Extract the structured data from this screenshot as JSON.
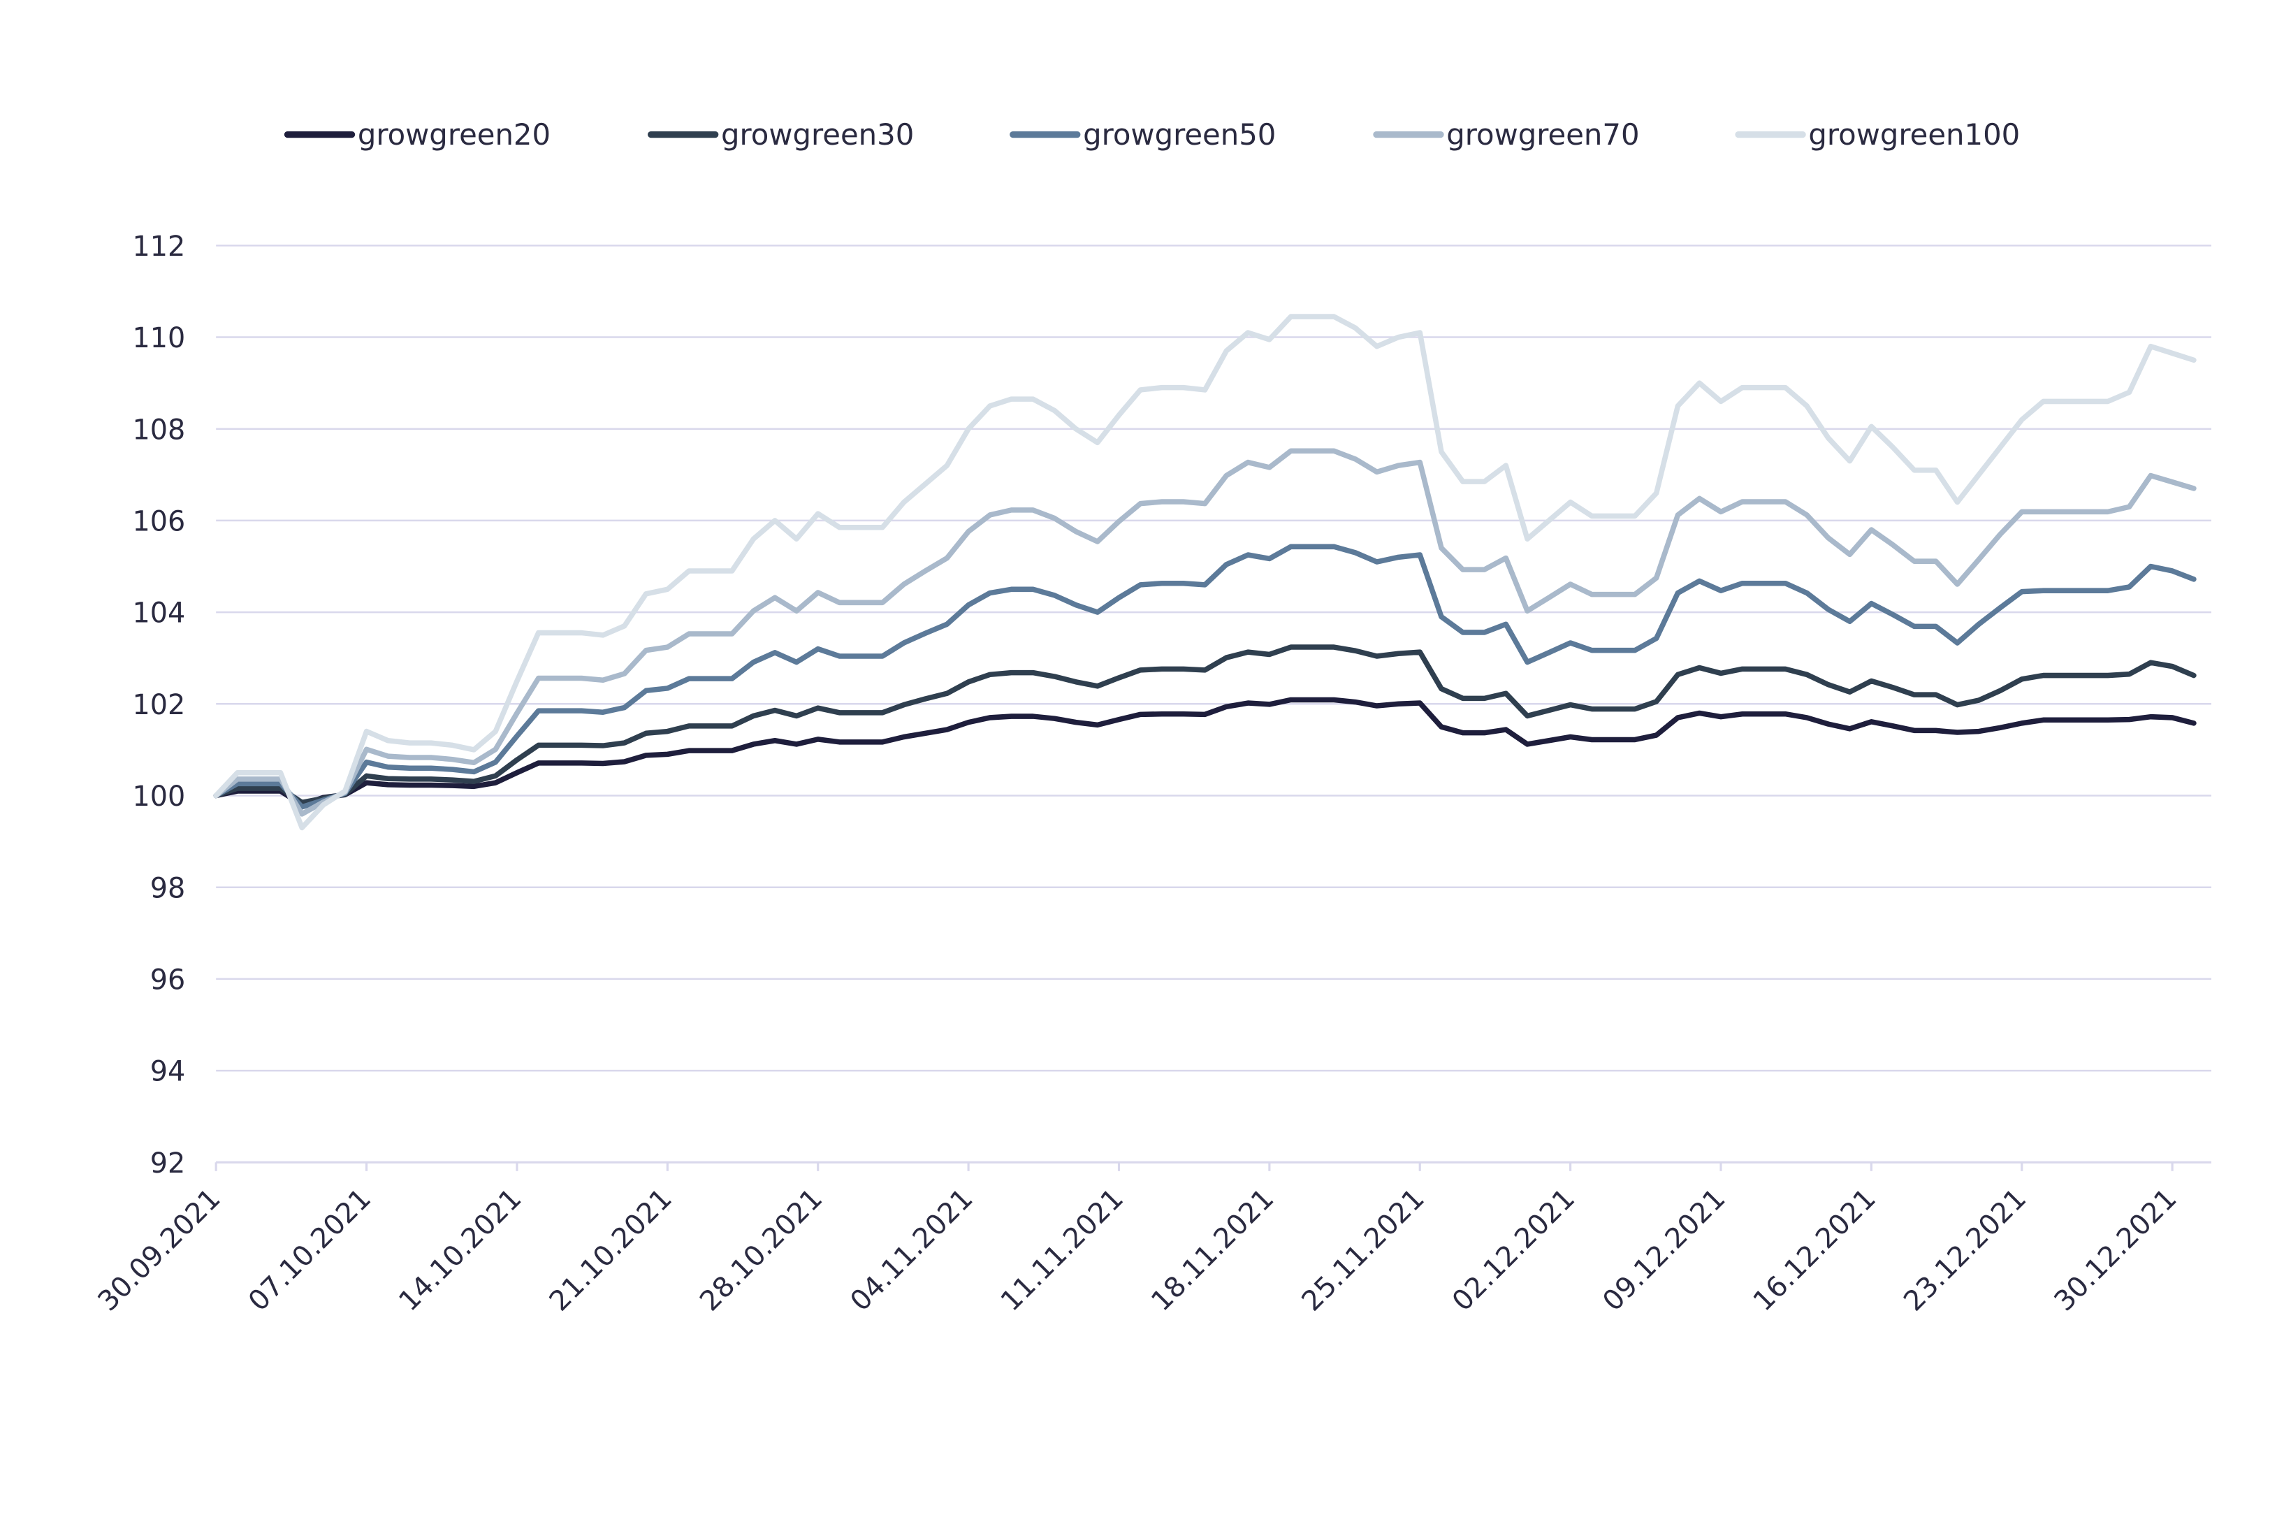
{
  "chart_data": {
    "type": "line",
    "title": "",
    "xlabel": "",
    "ylabel": "",
    "ylim": [
      92,
      112
    ],
    "yticks": [
      "92",
      "94",
      "96",
      "98",
      "100",
      "102",
      "104",
      "106",
      "108",
      "110",
      "112"
    ],
    "xticks": [
      "30.09.2021",
      "07.10.2021",
      "14.10.2021",
      "21.10.2021",
      "28.10.2021",
      "04.11.2021",
      "11.11.2021",
      "18.11.2021",
      "25.11.2021",
      "02.12.2021",
      "09.12.2021",
      "16.12.2021",
      "23.12.2021",
      "30.12.2021"
    ],
    "grid": "horizontal",
    "legend": "top",
    "x": [
      "30.09.2021",
      "01.10.2021",
      "02.10.2021",
      "03.10.2021",
      "04.10.2021",
      "05.10.2021",
      "06.10.2021",
      "07.10.2021",
      "08.10.2021",
      "09.10.2021",
      "10.10.2021",
      "11.10.2021",
      "12.10.2021",
      "13.10.2021",
      "14.10.2021",
      "15.10.2021",
      "16.10.2021",
      "17.10.2021",
      "18.10.2021",
      "19.10.2021",
      "20.10.2021",
      "21.10.2021",
      "22.10.2021",
      "23.10.2021",
      "24.10.2021",
      "25.10.2021",
      "26.10.2021",
      "27.10.2021",
      "28.10.2021",
      "29.10.2021",
      "30.10.2021",
      "31.10.2021",
      "01.11.2021",
      "02.11.2021",
      "03.11.2021",
      "04.11.2021",
      "05.11.2021",
      "06.11.2021",
      "07.11.2021",
      "08.11.2021",
      "09.11.2021",
      "10.11.2021",
      "11.11.2021",
      "12.11.2021",
      "13.11.2021",
      "14.11.2021",
      "15.11.2021",
      "16.11.2021",
      "17.11.2021",
      "18.11.2021",
      "19.11.2021",
      "20.11.2021",
      "21.11.2021",
      "22.11.2021",
      "23.11.2021",
      "24.11.2021",
      "25.11.2021",
      "26.11.2021",
      "27.11.2021",
      "28.11.2021",
      "29.11.2021",
      "30.11.2021",
      "01.12.2021",
      "02.12.2021",
      "03.12.2021",
      "04.12.2021",
      "05.12.2021",
      "06.12.2021",
      "07.12.2021",
      "08.12.2021",
      "09.12.2021",
      "10.12.2021",
      "11.12.2021",
      "12.12.2021",
      "13.12.2021",
      "14.12.2021",
      "15.12.2021",
      "16.12.2021",
      "17.12.2021",
      "18.12.2021",
      "19.12.2021",
      "20.12.2021",
      "21.12.2021",
      "22.12.2021",
      "23.12.2021",
      "24.12.2021",
      "25.12.2021",
      "26.12.2021",
      "27.12.2021",
      "28.12.2021",
      "29.12.2021",
      "30.12.2021",
      "31.12.2021"
    ],
    "series": [
      {
        "name": "growgreen20",
        "color": "#1e1e3c",
        "values": [
          100,
          100.1,
          100.1,
          100.1,
          99.8,
          99.96,
          100.02,
          100.28,
          100.24,
          100.23,
          100.23,
          100.22,
          100.2,
          100.28,
          100.5,
          100.71,
          100.71,
          100.71,
          100.7,
          100.74,
          100.88,
          100.9,
          100.98,
          100.98,
          100.98,
          101.12,
          101.2,
          101.12,
          101.23,
          101.17,
          101.17,
          101.17,
          101.28,
          101.36,
          101.44,
          101.6,
          101.7,
          101.73,
          101.73,
          101.68,
          101.6,
          101.54,
          101.66,
          101.77,
          101.78,
          101.78,
          101.77,
          101.94,
          102.02,
          101.99,
          102.09,
          102.09,
          102.09,
          102.04,
          101.96,
          102.0,
          102.02,
          101.5,
          101.37,
          101.37,
          101.44,
          101.12,
          101.2,
          101.28,
          101.22,
          101.22,
          101.22,
          101.32,
          101.7,
          101.8,
          101.72,
          101.78,
          101.78,
          101.78,
          101.7,
          101.56,
          101.46,
          101.61,
          101.52,
          101.42,
          101.42,
          101.38,
          101.4,
          101.48,
          101.58,
          101.65,
          101.65,
          101.65,
          101.65,
          101.66,
          101.72,
          101.7,
          101.58
        ]
      },
      {
        "name": "growgreen30",
        "color": "#2f3f4f",
        "values": [
          100,
          100.16,
          100.16,
          100.16,
          99.85,
          99.94,
          100.03,
          100.43,
          100.37,
          100.36,
          100.36,
          100.34,
          100.31,
          100.43,
          100.78,
          101.1,
          101.1,
          101.1,
          101.09,
          101.15,
          101.36,
          101.4,
          101.52,
          101.52,
          101.52,
          101.74,
          101.86,
          101.74,
          101.91,
          101.81,
          101.81,
          101.81,
          101.98,
          102.11,
          102.23,
          102.48,
          102.64,
          102.68,
          102.68,
          102.6,
          102.48,
          102.39,
          102.57,
          102.74,
          102.76,
          102.76,
          102.74,
          103.01,
          103.13,
          103.08,
          103.24,
          103.24,
          103.24,
          103.16,
          103.04,
          103.1,
          103.13,
          102.33,
          102.12,
          102.12,
          102.23,
          101.74,
          101.86,
          101.98,
          101.89,
          101.89,
          101.89,
          102.05,
          102.64,
          102.79,
          102.67,
          102.76,
          102.76,
          102.76,
          102.64,
          102.42,
          102.26,
          102.5,
          102.36,
          102.2,
          102.2,
          101.98,
          102.08,
          102.29,
          102.54,
          102.62,
          102.62,
          102.62,
          102.62,
          102.65,
          102.9,
          102.82,
          102.62
        ]
      },
      {
        "name": "growgreen50",
        "color": "#5c7a99",
        "values": [
          100,
          100.26,
          100.26,
          100.26,
          99.75,
          99.9,
          100.05,
          100.73,
          100.62,
          100.6,
          100.6,
          100.57,
          100.52,
          100.73,
          101.3,
          101.85,
          101.85,
          101.85,
          101.82,
          101.92,
          102.29,
          102.34,
          102.55,
          102.55,
          102.55,
          102.91,
          103.12,
          102.91,
          103.2,
          103.04,
          103.04,
          103.04,
          103.33,
          103.54,
          103.74,
          104.16,
          104.42,
          104.5,
          104.5,
          104.37,
          104.16,
          104.0,
          104.32,
          104.6,
          104.63,
          104.63,
          104.6,
          105.04,
          105.25,
          105.17,
          105.43,
          105.43,
          105.43,
          105.3,
          105.1,
          105.2,
          105.25,
          103.9,
          103.56,
          103.56,
          103.74,
          102.91,
          103.12,
          103.33,
          103.17,
          103.17,
          103.17,
          103.43,
          104.42,
          104.68,
          104.47,
          104.63,
          104.63,
          104.63,
          104.42,
          104.06,
          103.8,
          104.19,
          103.95,
          103.69,
          103.69,
          103.33,
          103.74,
          104.1,
          104.45,
          104.47,
          104.47,
          104.47,
          104.47,
          104.55,
          105.0,
          104.9,
          104.72
        ]
      },
      {
        "name": "growgreen70",
        "color": "#a9b9cb",
        "values": [
          100,
          100.36,
          100.36,
          100.36,
          99.6,
          99.86,
          100.07,
          101.01,
          100.86,
          100.83,
          100.83,
          100.79,
          100.72,
          101.01,
          101.8,
          102.56,
          102.56,
          102.56,
          102.52,
          102.66,
          103.17,
          103.24,
          103.53,
          103.53,
          103.53,
          104.03,
          104.32,
          104.03,
          104.43,
          104.21,
          104.21,
          104.21,
          104.61,
          104.9,
          105.18,
          105.76,
          106.12,
          106.23,
          106.23,
          106.05,
          105.76,
          105.54,
          105.98,
          106.37,
          106.41,
          106.41,
          106.37,
          106.98,
          107.27,
          107.16,
          107.52,
          107.52,
          107.52,
          107.34,
          107.06,
          107.2,
          107.27,
          105.4,
          104.93,
          104.93,
          105.18,
          104.03,
          104.32,
          104.61,
          104.39,
          104.39,
          104.39,
          104.75,
          106.12,
          106.48,
          106.19,
          106.41,
          106.41,
          106.41,
          106.12,
          105.62,
          105.26,
          105.8,
          105.47,
          105.11,
          105.11,
          104.61,
          105.15,
          105.7,
          106.19,
          106.19,
          106.19,
          106.19,
          106.19,
          106.3,
          106.98,
          106.84,
          106.7
        ]
      },
      {
        "name": "growgreen100",
        "color": "#d6dfe7",
        "values": [
          100,
          100.5,
          100.5,
          100.5,
          99.3,
          99.8,
          100.1,
          101.4,
          101.2,
          101.15,
          101.15,
          101.1,
          101.0,
          101.4,
          102.5,
          103.55,
          103.55,
          103.55,
          103.5,
          103.7,
          104.4,
          104.5,
          104.9,
          104.9,
          104.9,
          105.6,
          106.0,
          105.6,
          106.15,
          105.85,
          105.85,
          105.85,
          106.4,
          106.8,
          107.2,
          108.0,
          108.5,
          108.65,
          108.65,
          108.4,
          108.0,
          107.7,
          108.3,
          108.85,
          108.9,
          108.9,
          108.85,
          109.7,
          110.1,
          109.95,
          110.45,
          110.45,
          110.45,
          110.2,
          109.8,
          110.0,
          110.1,
          107.5,
          106.85,
          106.85,
          107.2,
          105.6,
          106.0,
          106.4,
          106.1,
          106.1,
          106.1,
          106.6,
          108.5,
          109.0,
          108.6,
          108.9,
          108.9,
          108.9,
          108.5,
          107.8,
          107.3,
          108.05,
          107.6,
          107.1,
          107.1,
          106.4,
          107.0,
          107.6,
          108.2,
          108.6,
          108.6,
          108.6,
          108.6,
          108.8,
          109.8,
          109.65,
          109.5
        ]
      }
    ]
  }
}
